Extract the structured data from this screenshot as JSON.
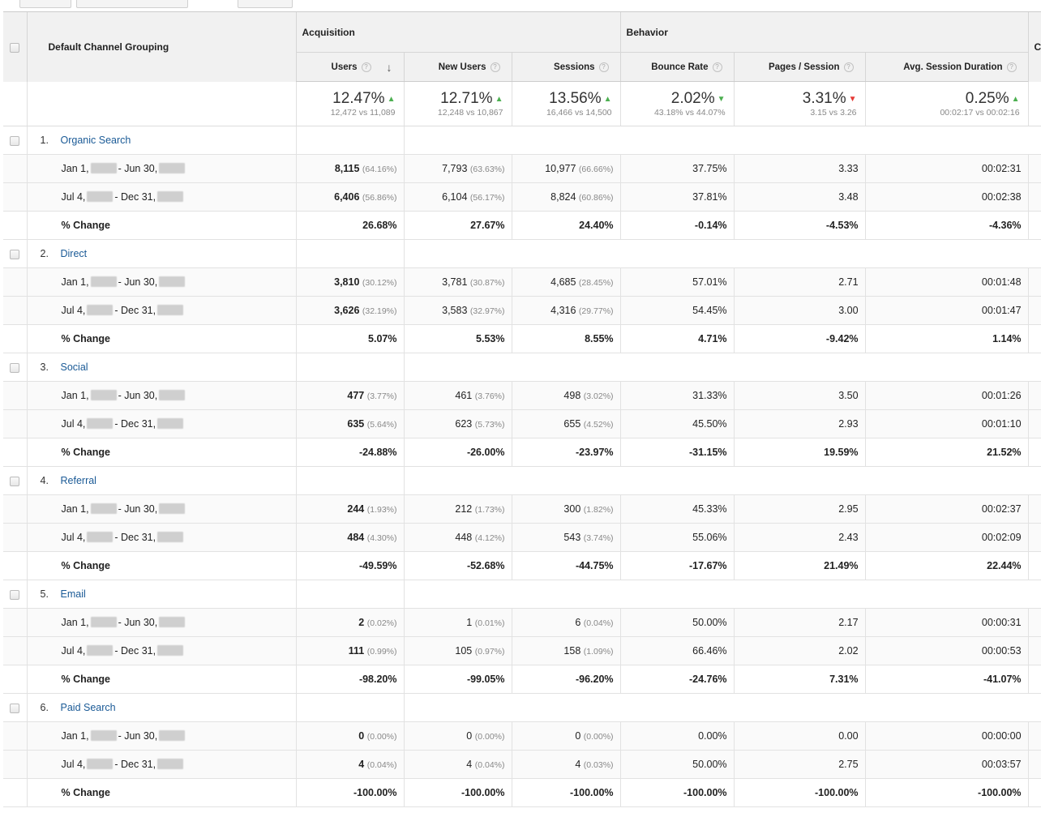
{
  "header": {
    "dimension_label": "Default Channel Grouping",
    "groups": {
      "acquisition": "Acquisition",
      "behavior": "Behavior",
      "conversions": "Co"
    },
    "columns": [
      {
        "key": "users",
        "label": "Users",
        "sorted": true
      },
      {
        "key": "new_users",
        "label": "New Users"
      },
      {
        "key": "sessions",
        "label": "Sessions"
      },
      {
        "key": "bounce_rate",
        "label": "Bounce Rate"
      },
      {
        "key": "pages_session",
        "label": "Pages / Session"
      },
      {
        "key": "avg_session_duration",
        "label": "Avg. Session Duration"
      }
    ]
  },
  "summary": [
    {
      "big": "12.47%",
      "small": "12,472 vs 11,089",
      "trend": "up",
      "trend_color": "#4caf50"
    },
    {
      "big": "12.71%",
      "small": "12,248 vs 10,867",
      "trend": "up",
      "trend_color": "#4caf50"
    },
    {
      "big": "13.56%",
      "small": "16,466 vs 14,500",
      "trend": "up",
      "trend_color": "#4caf50"
    },
    {
      "big": "2.02%",
      "small": "43.18% vs 44.07%",
      "trend": "down",
      "trend_color": "#4caf50"
    },
    {
      "big": "3.31%",
      "small": "3.15 vs 3.26",
      "trend": "down",
      "trend_color": "#e53935"
    },
    {
      "big": "0.25%",
      "small": "00:02:17 vs 00:02:16",
      "trend": "up",
      "trend_color": "#4caf50"
    }
  ],
  "date_labels": {
    "range1_start": "Jan 1,",
    "range1_end": "- Jun 30,",
    "range2_start": "Jul 4,",
    "range2_end": "- Dec 31,",
    "change": "% Change"
  },
  "channels": [
    {
      "index": "1.",
      "name": "Organic Search",
      "r1": {
        "users": "8,115",
        "users_pct": "(64.16%)",
        "new_users": "7,793",
        "new_users_pct": "(63.63%)",
        "sessions": "10,977",
        "sessions_pct": "(66.66%)",
        "bounce": "37.75%",
        "pages": "3.33",
        "duration": "00:02:31"
      },
      "r2": {
        "users": "6,406",
        "users_pct": "(56.86%)",
        "new_users": "6,104",
        "new_users_pct": "(56.17%)",
        "sessions": "8,824",
        "sessions_pct": "(60.86%)",
        "bounce": "37.81%",
        "pages": "3.48",
        "duration": "00:02:38"
      },
      "change": {
        "users": "26.68%",
        "new_users": "27.67%",
        "sessions": "24.40%",
        "bounce": "-0.14%",
        "pages": "-4.53%",
        "duration": "-4.36%"
      }
    },
    {
      "index": "2.",
      "name": "Direct",
      "r1": {
        "users": "3,810",
        "users_pct": "(30.12%)",
        "new_users": "3,781",
        "new_users_pct": "(30.87%)",
        "sessions": "4,685",
        "sessions_pct": "(28.45%)",
        "bounce": "57.01%",
        "pages": "2.71",
        "duration": "00:01:48"
      },
      "r2": {
        "users": "3,626",
        "users_pct": "(32.19%)",
        "new_users": "3,583",
        "new_users_pct": "(32.97%)",
        "sessions": "4,316",
        "sessions_pct": "(29.77%)",
        "bounce": "54.45%",
        "pages": "3.00",
        "duration": "00:01:47"
      },
      "change": {
        "users": "5.07%",
        "new_users": "5.53%",
        "sessions": "8.55%",
        "bounce": "4.71%",
        "pages": "-9.42%",
        "duration": "1.14%"
      }
    },
    {
      "index": "3.",
      "name": "Social",
      "r1": {
        "users": "477",
        "users_pct": "(3.77%)",
        "new_users": "461",
        "new_users_pct": "(3.76%)",
        "sessions": "498",
        "sessions_pct": "(3.02%)",
        "bounce": "31.33%",
        "pages": "3.50",
        "duration": "00:01:26"
      },
      "r2": {
        "users": "635",
        "users_pct": "(5.64%)",
        "new_users": "623",
        "new_users_pct": "(5.73%)",
        "sessions": "655",
        "sessions_pct": "(4.52%)",
        "bounce": "45.50%",
        "pages": "2.93",
        "duration": "00:01:10"
      },
      "change": {
        "users": "-24.88%",
        "new_users": "-26.00%",
        "sessions": "-23.97%",
        "bounce": "-31.15%",
        "pages": "19.59%",
        "duration": "21.52%"
      }
    },
    {
      "index": "4.",
      "name": "Referral",
      "r1": {
        "users": "244",
        "users_pct": "(1.93%)",
        "new_users": "212",
        "new_users_pct": "(1.73%)",
        "sessions": "300",
        "sessions_pct": "(1.82%)",
        "bounce": "45.33%",
        "pages": "2.95",
        "duration": "00:02:37"
      },
      "r2": {
        "users": "484",
        "users_pct": "(4.30%)",
        "new_users": "448",
        "new_users_pct": "(4.12%)",
        "sessions": "543",
        "sessions_pct": "(3.74%)",
        "bounce": "55.06%",
        "pages": "2.43",
        "duration": "00:02:09"
      },
      "change": {
        "users": "-49.59%",
        "new_users": "-52.68%",
        "sessions": "-44.75%",
        "bounce": "-17.67%",
        "pages": "21.49%",
        "duration": "22.44%"
      }
    },
    {
      "index": "5.",
      "name": "Email",
      "r1": {
        "users": "2",
        "users_pct": "(0.02%)",
        "new_users": "1",
        "new_users_pct": "(0.01%)",
        "sessions": "6",
        "sessions_pct": "(0.04%)",
        "bounce": "50.00%",
        "pages": "2.17",
        "duration": "00:00:31"
      },
      "r2": {
        "users": "111",
        "users_pct": "(0.99%)",
        "new_users": "105",
        "new_users_pct": "(0.97%)",
        "sessions": "158",
        "sessions_pct": "(1.09%)",
        "bounce": "66.46%",
        "pages": "2.02",
        "duration": "00:00:53"
      },
      "change": {
        "users": "-98.20%",
        "new_users": "-99.05%",
        "sessions": "-96.20%",
        "bounce": "-24.76%",
        "pages": "7.31%",
        "duration": "-41.07%"
      }
    },
    {
      "index": "6.",
      "name": "Paid Search",
      "r1": {
        "users": "0",
        "users_pct": "(0.00%)",
        "new_users": "0",
        "new_users_pct": "(0.00%)",
        "sessions": "0",
        "sessions_pct": "(0.00%)",
        "bounce": "0.00%",
        "pages": "0.00",
        "duration": "00:00:00"
      },
      "r2": {
        "users": "4",
        "users_pct": "(0.04%)",
        "new_users": "4",
        "new_users_pct": "(0.04%)",
        "sessions": "4",
        "sessions_pct": "(0.03%)",
        "bounce": "50.00%",
        "pages": "2.75",
        "duration": "00:03:57"
      },
      "change": {
        "users": "-100.00%",
        "new_users": "-100.00%",
        "sessions": "-100.00%",
        "bounce": "-100.00%",
        "pages": "-100.00%",
        "duration": "-100.00%"
      }
    }
  ]
}
